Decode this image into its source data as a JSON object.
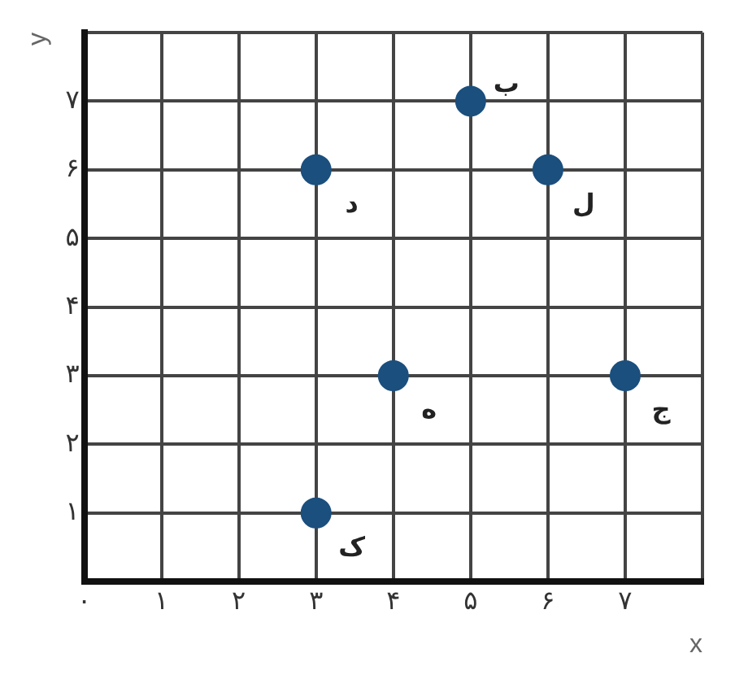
{
  "chart_data": {
    "type": "scatter",
    "xlabel": "x",
    "ylabel": "y",
    "series": [
      {
        "color": "#1b4f7e",
        "x": [
          3,
          4,
          3,
          5,
          6,
          7
        ],
        "values": [
          1,
          3,
          6,
          7,
          6,
          3
        ]
      }
    ],
    "xlim": [
      0,
      8
    ],
    "ylim": [
      0,
      8
    ],
    "xticks": [
      {
        "value": 0,
        "label": "۰"
      },
      {
        "value": 1,
        "label": "۱"
      },
      {
        "value": 2,
        "label": "۲"
      },
      {
        "value": 3,
        "label": "۳"
      },
      {
        "value": 4,
        "label": "۴"
      },
      {
        "value": 5,
        "label": "۵"
      },
      {
        "value": 6,
        "label": "۶"
      },
      {
        "value": 7,
        "label": "۷"
      },
      {
        "value": 8,
        "label": null
      }
    ],
    "yticks": [
      {
        "value": 0,
        "label": null
      },
      {
        "value": 1,
        "label": "۱"
      },
      {
        "value": 2,
        "label": "۲"
      },
      {
        "value": 3,
        "label": "۳"
      },
      {
        "value": 4,
        "label": "۴"
      },
      {
        "value": 5,
        "label": "۵"
      },
      {
        "value": 6,
        "label": "۶"
      },
      {
        "value": 7,
        "label": "۷"
      },
      {
        "value": 8,
        "label": null
      }
    ],
    "annotations": [
      {
        "text": "ک",
        "x": 3,
        "y": 1
      },
      {
        "text": "ه",
        "x": 4,
        "y": 3
      },
      {
        "text": "د",
        "x": 3,
        "y": 6
      },
      {
        "text": "ب",
        "x": 5,
        "y": 7
      },
      {
        "text": "ل",
        "x": 6,
        "y": 6
      },
      {
        "text": "ج",
        "x": 7,
        "y": 3
      }
    ],
    "grid": true,
    "marker": "circle",
    "legend": false
  }
}
